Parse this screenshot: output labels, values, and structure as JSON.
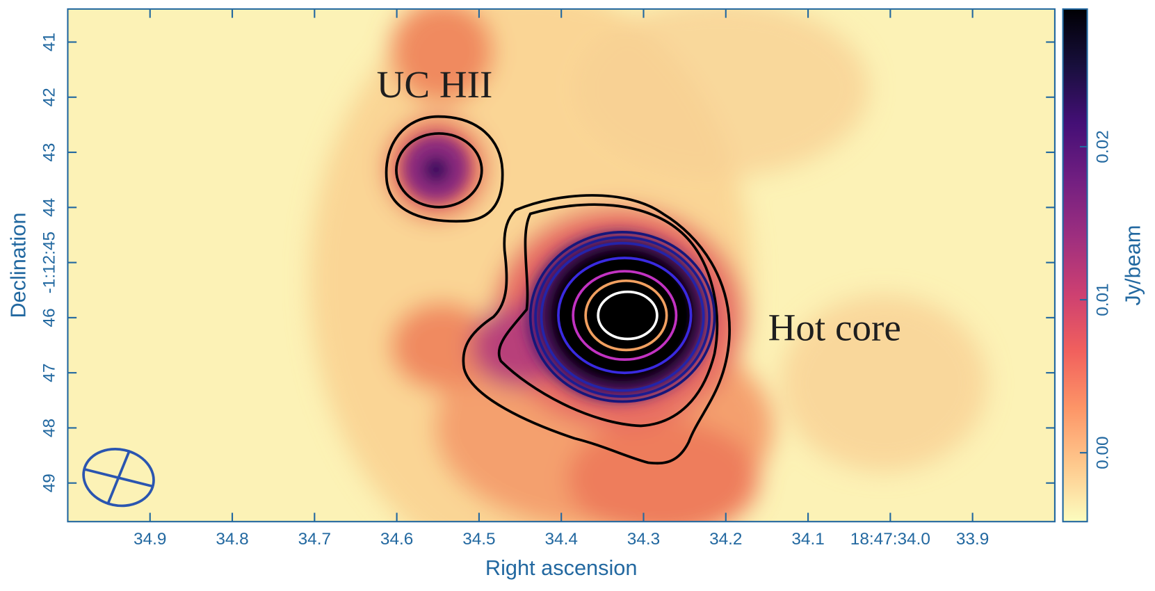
{
  "chart_data": {
    "type": "image",
    "xlabel": "Right ascension",
    "ylabel": "Declination",
    "xlim": [
      35.0,
      33.8
    ],
    "xticks": [
      34.9,
      34.8,
      34.7,
      34.6,
      34.5,
      34.4,
      34.3,
      34.2,
      34.1,
      {
        "value": 34.0,
        "label": "18:47:34.0"
      },
      33.9
    ],
    "ylim": [
      49.7,
      40.4
    ],
    "yticks": [
      41,
      42,
      43,
      44,
      {
        "value": 45,
        "label": "-1:12:45"
      },
      46,
      47,
      48,
      49
    ],
    "colorbar": {
      "label": "Jy/beam",
      "colormap": "magma_r",
      "lim": [
        -0.0045,
        0.029
      ],
      "ticks": [
        {
          "value": 0,
          "label": "0.00"
        },
        0.01,
        0.02
      ]
    },
    "annotations": [
      "UC HII",
      "Hot core"
    ]
  }
}
